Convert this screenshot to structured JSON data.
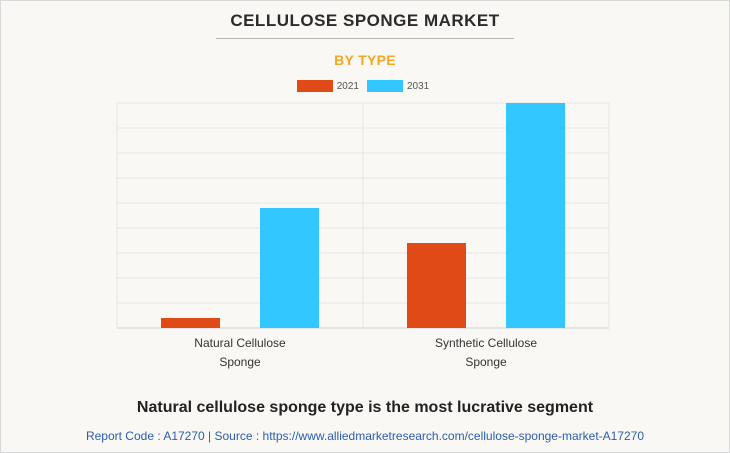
{
  "header": {
    "title": "CELLULOSE SPONGE MARKET",
    "subtitle": "BY TYPE"
  },
  "chart_data": {
    "type": "bar",
    "categories": [
      "Natural Cellulose Sponge",
      "Synthetic Cellulose Sponge"
    ],
    "category_lines": [
      [
        "Natural Cellulose",
        "Sponge"
      ],
      [
        "Synthetic Cellulose",
        "Sponge"
      ]
    ],
    "series": [
      {
        "name": "2021",
        "color": "#e04a17",
        "values": [
          0.4,
          3.4
        ]
      },
      {
        "name": "2031",
        "color": "#33c7ff",
        "values": [
          4.8,
          9.0
        ]
      }
    ],
    "ylim": [
      0,
      9
    ],
    "grid": true,
    "legend_position": "top-center"
  },
  "footer": {
    "headline": "Natural cellulose sponge type is the most lucrative segment",
    "source": "Report Code : A17270  |  Source : https://www.alliedmarketresearch.com/cellulose-sponge-market-A17270"
  }
}
